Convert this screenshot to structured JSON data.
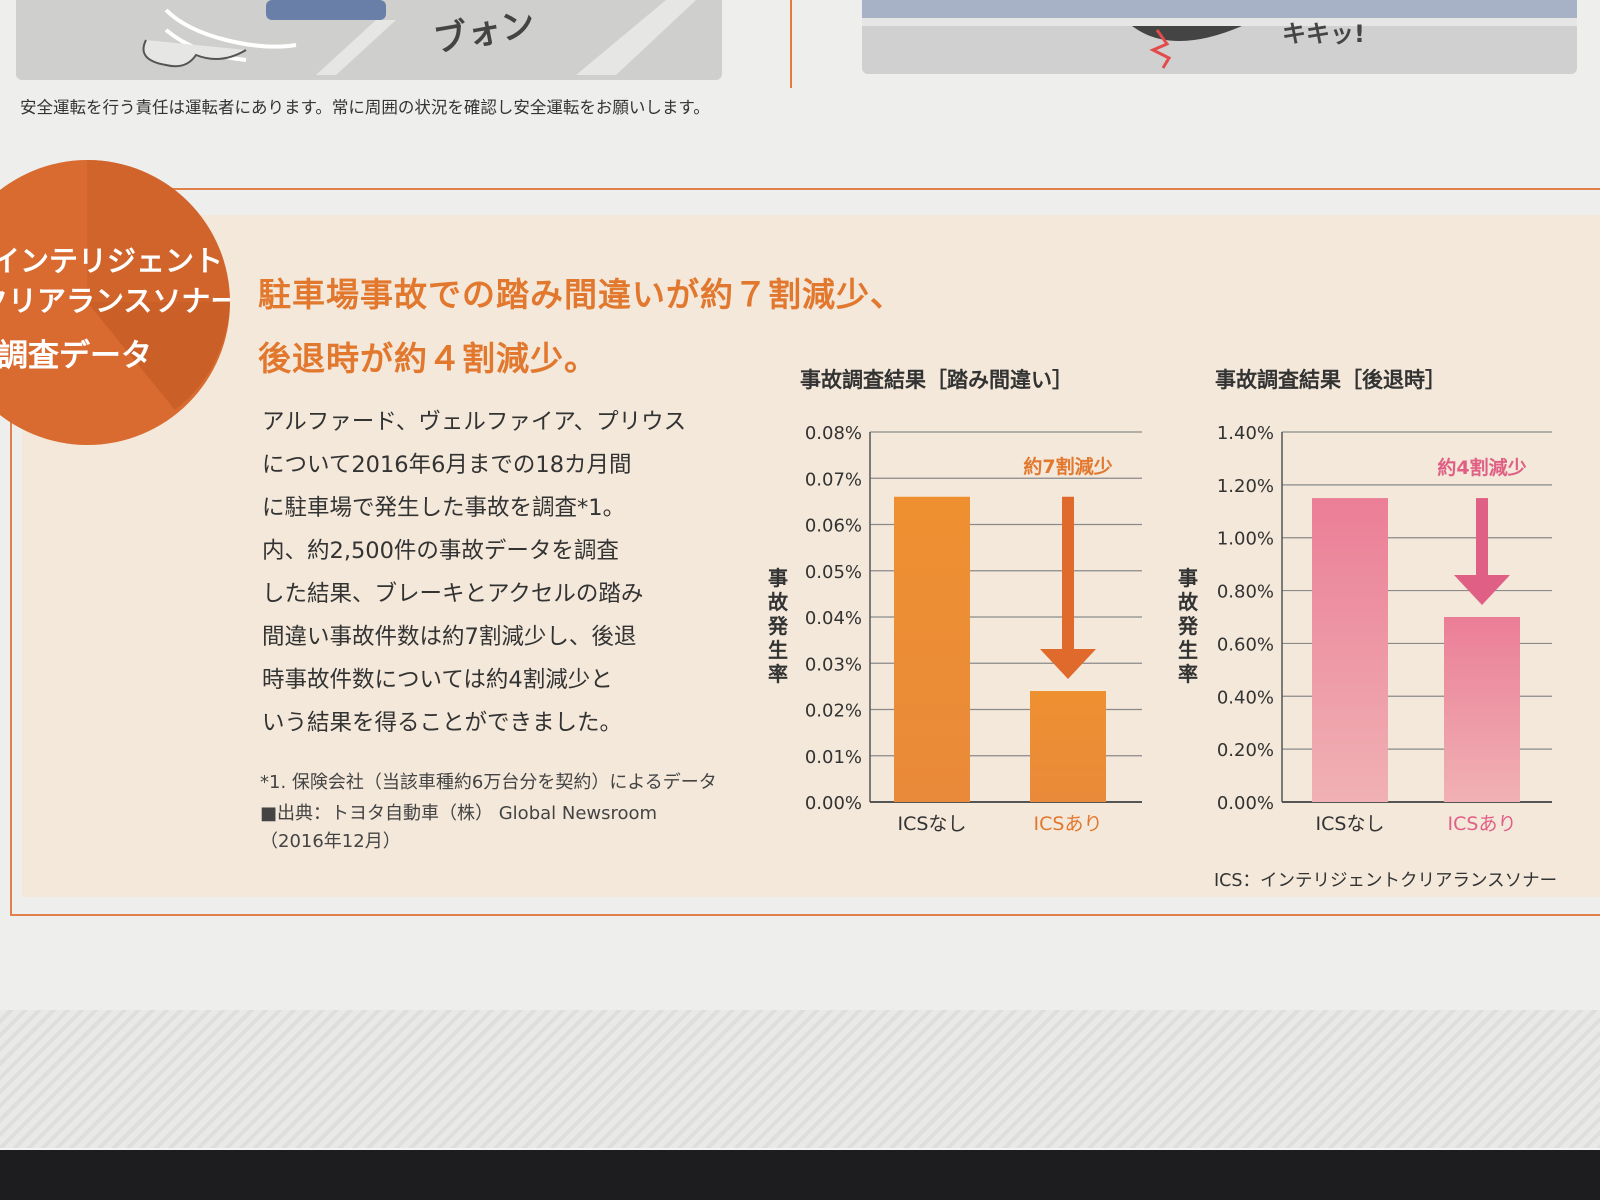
{
  "top": {
    "sound_left": "ブォン",
    "sound_right": "キキッ!",
    "disclaimer": "安全運転を行う責任は運転者にあります。常に周囲の状況を確認し安全運転をお願いします。"
  },
  "badge": {
    "lines": [
      "インテリジェント",
      "クリアランスソナー",
      "調査データ"
    ]
  },
  "headline": {
    "line1": "駐車場事故での踏み間違いが約７割減少、",
    "line2": "後退時が約４割減少。"
  },
  "body": {
    "lines": [
      "アルファード、ヴェルファイア、プリウス",
      "について2016年6月までの18カ月間",
      "に駐車場で発生した事故を調査*1。",
      "内、約2,500件の事故データを調査",
      "した結果、ブレーキとアクセルの踏み",
      "間違い事故件数は約7割減少し、後退",
      "時事故件数については約4割減少と",
      "いう結果を得ることができました。"
    ],
    "notes": [
      "*1. 保険会社（当該車種約6万台分を契約）によるデータ",
      "■出典：トヨタ自動車（株） Global Newsroom",
      "（2016年12月）"
    ]
  },
  "ics_footnote": "ICS：インテリジェントクリアランスソナー",
  "colors": {
    "accent_orange": "#e2782e",
    "bar_orange": "#ec8d32",
    "bar_pink": "#e98a9f",
    "arrow_orange": "#df6a2c",
    "arrow_pink": "#e06085",
    "panel_bg": "#f3e8da"
  },
  "chart_data": [
    {
      "type": "bar",
      "title": "事故調査結果［踏み間違い］",
      "ylabel": "事故発生率",
      "categories": [
        "ICSなし",
        "ICSあり"
      ],
      "values": [
        0.066,
        0.024
      ],
      "ylim": [
        0,
        0.08
      ],
      "yticks": [
        "0.00%",
        "0.01%",
        "0.02%",
        "0.03%",
        "0.04%",
        "0.05%",
        "0.06%",
        "0.07%",
        "0.08%"
      ],
      "annotation": "約7割減少",
      "grid": true
    },
    {
      "type": "bar",
      "title": "事故調査結果［後退時］",
      "ylabel": "事故発生率",
      "categories": [
        "ICSなし",
        "ICSあり"
      ],
      "values": [
        1.15,
        0.7
      ],
      "ylim": [
        0,
        1.4
      ],
      "yticks": [
        "0.00%",
        "0.20%",
        "0.40%",
        "0.60%",
        "0.80%",
        "1.00%",
        "1.20%",
        "1.40%"
      ],
      "annotation": "約4割減少",
      "grid": true
    }
  ]
}
